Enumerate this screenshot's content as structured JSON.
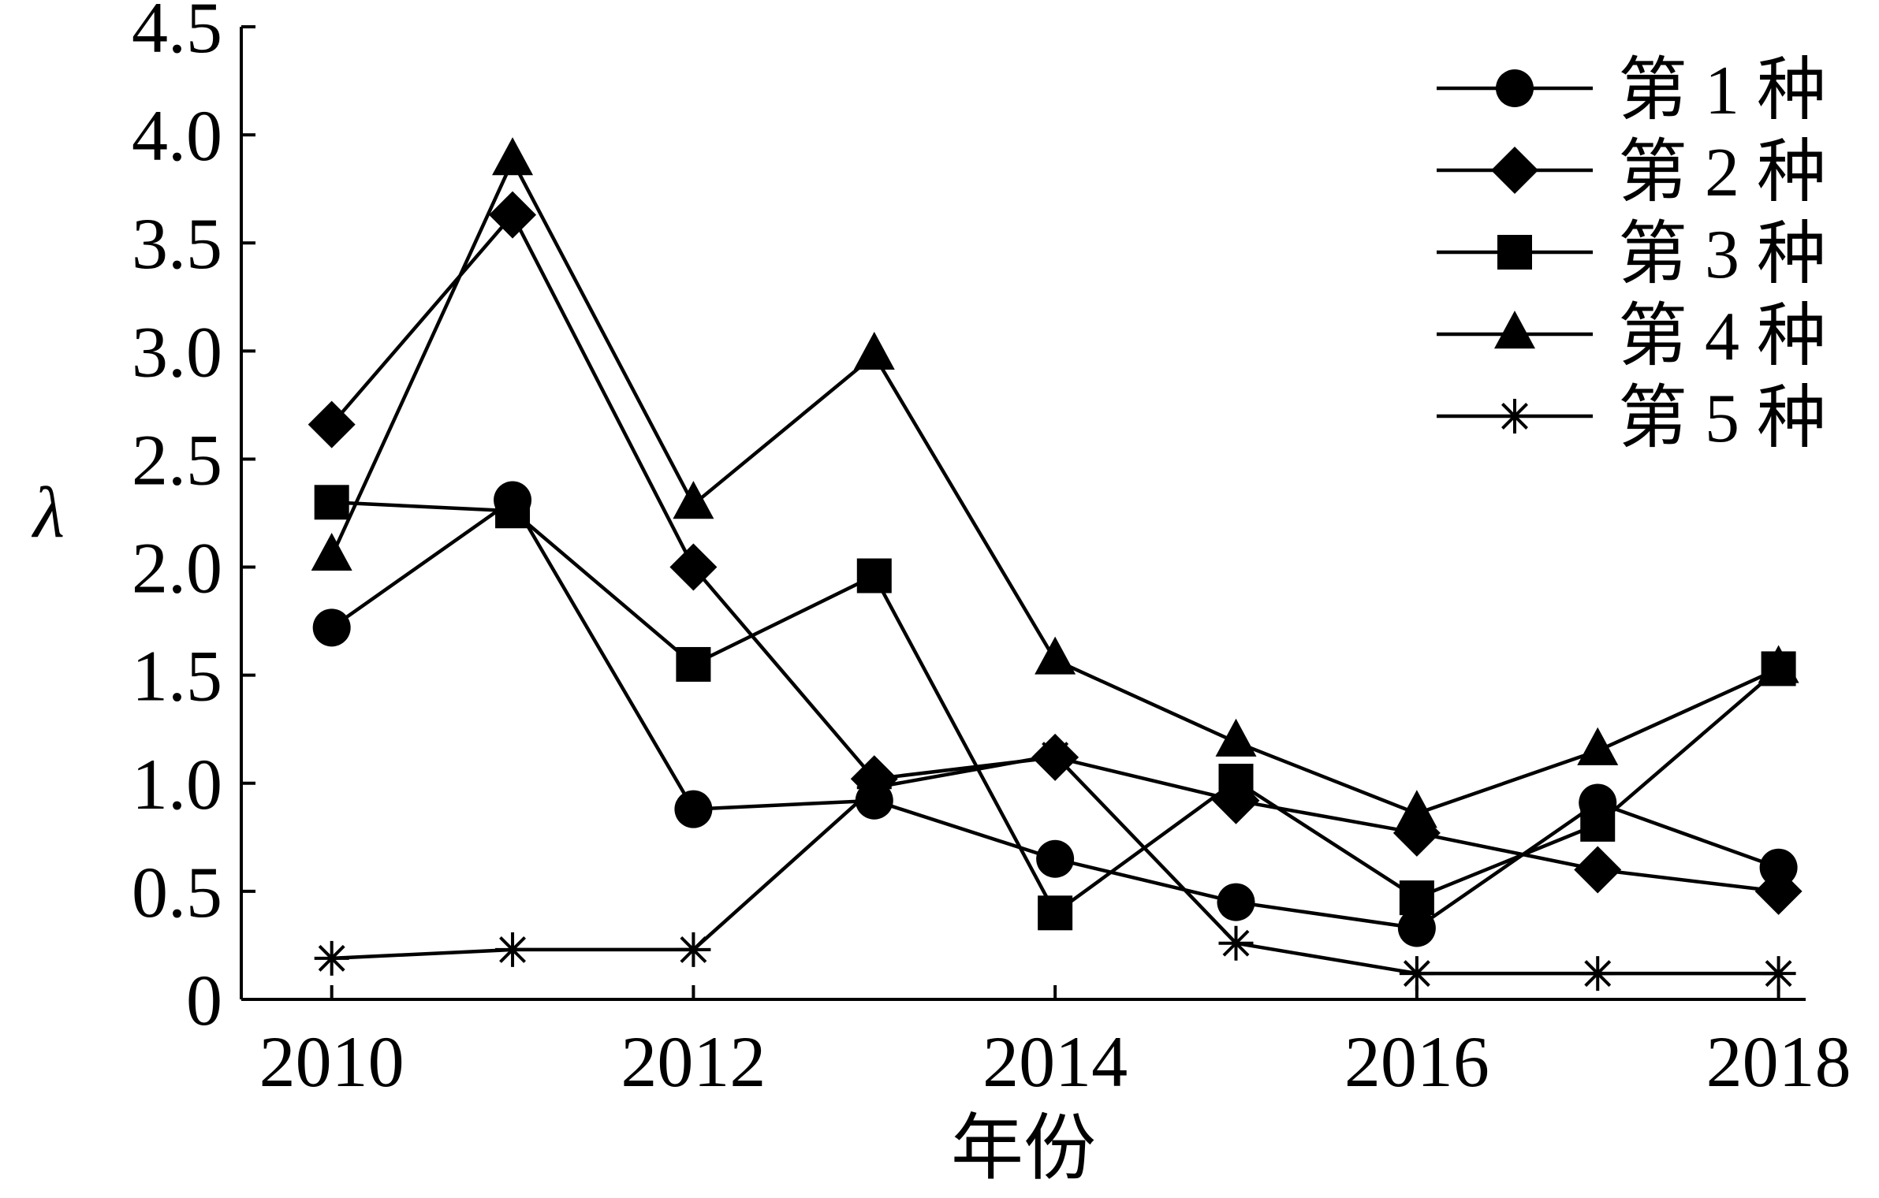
{
  "chart_data": {
    "type": "line",
    "xlabel": "年份",
    "ylabel": "λ",
    "x": [
      2010,
      2011,
      2012,
      2013,
      2014,
      2015,
      2016,
      2017,
      2018
    ],
    "xticks": [
      2010,
      2012,
      2014,
      2016,
      2018
    ],
    "xlim": [
      2009.5,
      2018.15
    ],
    "ylim": [
      0,
      4.5
    ],
    "yticks": [
      "0",
      "0.5",
      "1.0",
      "1.5",
      "2.0",
      "2.5",
      "3.0",
      "3.5",
      "4.0",
      "4.5"
    ],
    "ytick_values": [
      0,
      0.5,
      1.0,
      1.5,
      2.0,
      2.5,
      3.0,
      3.5,
      4.0,
      4.5
    ],
    "grid": false,
    "legend_position": "top-right",
    "series": [
      {
        "name": "第 1 种",
        "marker": "circle",
        "values": [
          1.72,
          2.31,
          0.88,
          0.92,
          0.65,
          0.45,
          0.33,
          0.91,
          0.61
        ]
      },
      {
        "name": "第 2 种",
        "marker": "diamond",
        "values": [
          2.66,
          3.63,
          2.0,
          1.02,
          1.12,
          0.92,
          0.77,
          0.6,
          0.5
        ]
      },
      {
        "name": "第 3 种",
        "marker": "square",
        "values": [
          2.3,
          2.26,
          1.55,
          1.96,
          0.4,
          1.01,
          0.47,
          0.81,
          1.53
        ]
      },
      {
        "name": "第 4 种",
        "marker": "triangle",
        "values": [
          2.05,
          3.88,
          2.29,
          2.98,
          1.57,
          1.19,
          0.86,
          1.15,
          1.53
        ]
      },
      {
        "name": "第 5 种",
        "marker": "asterisk",
        "values": [
          0.19,
          0.23,
          0.23,
          0.98,
          1.13,
          0.26,
          0.12,
          0.12,
          0.12
        ]
      }
    ]
  }
}
